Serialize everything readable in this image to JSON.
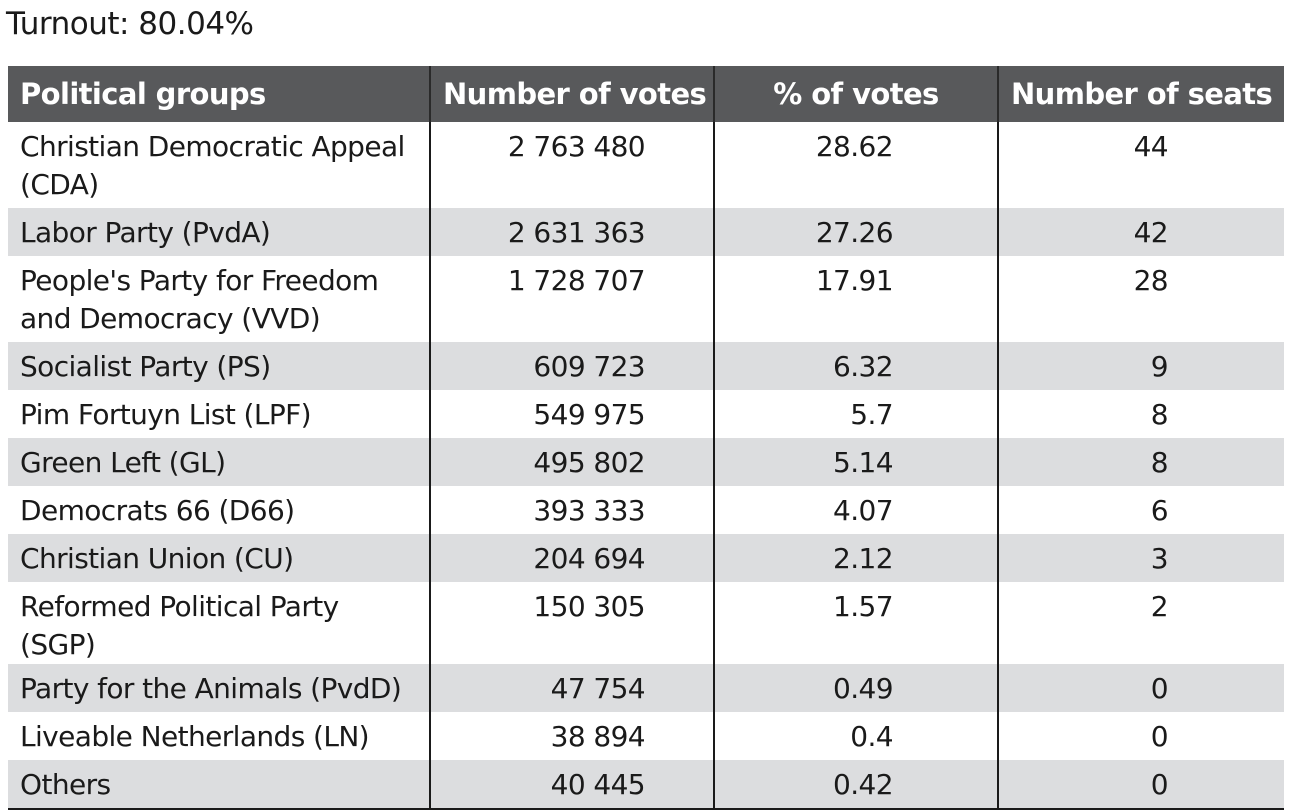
{
  "turnout": {
    "label": "Turnout:",
    "value": "80.04%"
  },
  "table": {
    "headers": {
      "party": "Political groups",
      "votes": "Number of votes",
      "percent": "% of votes",
      "seats": "Number of seats"
    },
    "rows": [
      {
        "party": "Christian Democratic Appeal (CDA)",
        "votes": "2 763 480",
        "percent": "28.62",
        "seats": "44"
      },
      {
        "party": "Labor Party (PvdA)",
        "votes": "2 631 363",
        "percent": "27.26",
        "seats": "42"
      },
      {
        "party": "People's Party for Freedom and Democracy (VVD)",
        "votes": "1 728 707",
        "percent": "17.91",
        "seats": "28"
      },
      {
        "party": "Socialist Party (PS)",
        "votes": "609 723",
        "percent": "6.32",
        "seats": "9"
      },
      {
        "party": "Pim Fortuyn List (LPF)",
        "votes": "549 975",
        "percent": "5.7",
        "seats": "8"
      },
      {
        "party": "Green Left (GL)",
        "votes": "495 802",
        "percent": "5.14",
        "seats": "8"
      },
      {
        "party": "Democrats 66 (D66)",
        "votes": "393 333",
        "percent": "4.07",
        "seats": "6"
      },
      {
        "party": "Christian Union (CU)",
        "votes": "204 694",
        "percent": "2.12",
        "seats": "3"
      },
      {
        "party": "Reformed Political Party (SGP)",
        "votes": "150 305",
        "percent": "1.57",
        "seats": "2"
      },
      {
        "party": "Party for the Animals (PvdD)",
        "votes": "47 754",
        "percent": "0.49",
        "seats": "0"
      },
      {
        "party": "Liveable Netherlands (LN)",
        "votes": "38 894",
        "percent": "0.4",
        "seats": "0"
      },
      {
        "party": "Others",
        "votes": "40 445",
        "percent": "0.42",
        "seats": "0"
      }
    ]
  }
}
